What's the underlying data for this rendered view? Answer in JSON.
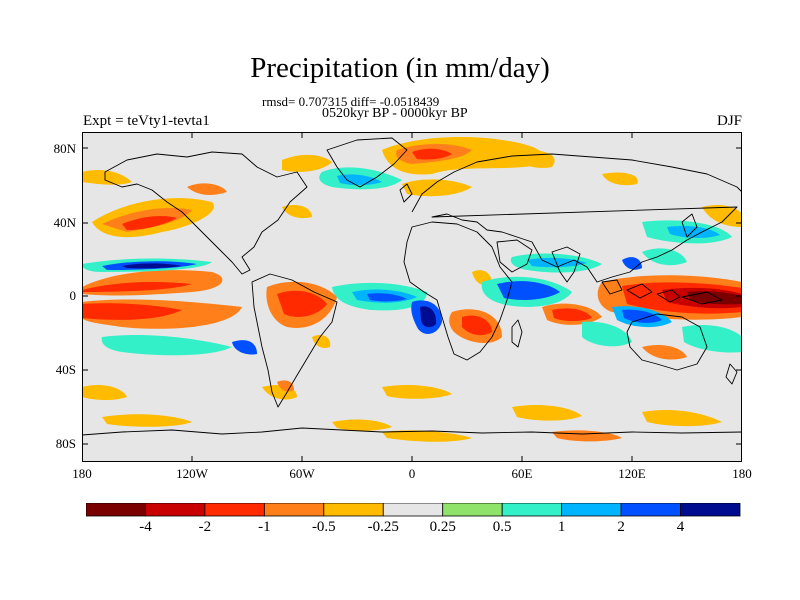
{
  "title": "Precipitation (in mm/day)",
  "stats_line": "rmsd= 0.707315 diff= -0.0518439",
  "period_line": "0520kyr BP - 0000kyr BP",
  "experiment": "Expt = teVty1-tevta1",
  "season": "DJF",
  "y_axis": {
    "ticks": [
      "80N",
      "40N",
      "0",
      "40S",
      "80S"
    ]
  },
  "x_axis": {
    "ticks": [
      "180",
      "120W",
      "60W",
      "0",
      "60E",
      "120E",
      "180"
    ]
  },
  "colorbar": {
    "colors": [
      "#7a0000",
      "#c80000",
      "#ff2a00",
      "#ff7f1a",
      "#ffbb00",
      "#e6e6e6",
      "#8fe36b",
      "#33f0c8",
      "#00b4ff",
      "#0050ff",
      "#000c8f"
    ],
    "labels": [
      "-4",
      "-2",
      "-1",
      "-0.5",
      "-0.25",
      "0.25",
      "0.5",
      "1",
      "2",
      "4"
    ]
  },
  "colors": {
    "background": "#e6e6e6",
    "coastline": "#000000"
  }
}
